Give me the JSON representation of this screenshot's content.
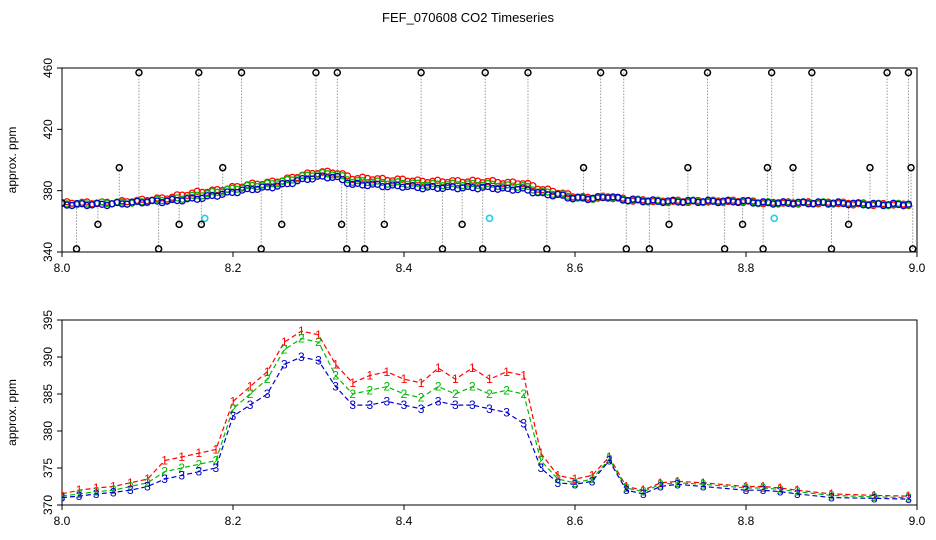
{
  "title": "FEF_070608  CO2 Timeseries",
  "colors": {
    "series1": "#ff0000",
    "series2": "#00bb00",
    "series3": "#0000cc",
    "outlier": "#000000",
    "flagged": "#22ccee",
    "drop": "#999999"
  },
  "chart_data": [
    {
      "type": "scatter",
      "name": "top",
      "ylabel": "approx. ppm",
      "xlim": [
        8.0,
        9.0
      ],
      "ylim": [
        340,
        460
      ],
      "xticks": [
        "8.0",
        "8.2",
        "8.4",
        "8.6",
        "8.8",
        "9.0"
      ],
      "yticks": [
        "340",
        "380",
        "420",
        "460"
      ],
      "outlier_x": [
        8.0,
        8.017,
        8.042,
        8.067,
        8.09,
        8.113,
        8.137,
        8.16,
        8.163,
        8.188,
        8.21,
        8.233,
        8.257,
        8.297,
        8.322,
        8.327,
        8.333,
        8.354,
        8.377,
        8.42,
        8.445,
        8.468,
        8.492,
        8.495,
        8.545,
        8.567,
        8.61,
        8.63,
        8.657,
        8.66,
        8.687,
        8.71,
        8.732,
        8.755,
        8.775,
        8.796,
        8.82,
        8.825,
        8.83,
        8.855,
        8.877,
        8.9,
        8.92,
        8.945,
        8.965,
        8.99,
        8.993,
        8.995
      ],
      "outlier_y": [
        372,
        342,
        358,
        395,
        457,
        342,
        358,
        457,
        358,
        395,
        457,
        342,
        358,
        457,
        457,
        358,
        342,
        342,
        358,
        457,
        342,
        358,
        342,
        457,
        457,
        342,
        395,
        457,
        457,
        342,
        342,
        358,
        395,
        457,
        342,
        358,
        342,
        395,
        457,
        395,
        457,
        342,
        358,
        395,
        457,
        457,
        395,
        342
      ],
      "flagged_x": [
        8.167,
        8.5,
        8.833
      ],
      "flagged_y": [
        362,
        362,
        362
      ],
      "series_x": [
        8.0,
        8.02,
        8.05,
        8.08,
        8.1,
        8.12,
        8.14,
        8.16,
        8.18,
        8.2,
        8.22,
        8.24,
        8.26,
        8.28,
        8.3,
        8.32,
        8.34,
        8.36,
        8.38,
        8.4,
        8.42,
        8.44,
        8.46,
        8.48,
        8.5,
        8.52,
        8.54,
        8.56,
        8.58,
        8.6,
        8.62,
        8.64,
        8.66,
        8.7,
        8.75,
        8.8,
        8.82,
        8.84,
        8.9,
        8.95,
        8.99
      ],
      "series": [
        {
          "name": "1",
          "values": [
            372,
            372,
            372,
            373,
            374,
            375,
            377,
            379,
            380,
            382,
            384,
            385,
            387,
            390,
            392,
            392,
            388,
            388,
            387,
            387,
            386,
            386,
            386,
            386,
            386,
            385,
            385,
            381,
            379,
            376,
            375,
            376,
            374,
            373,
            373,
            373,
            372,
            372,
            372,
            371,
            371
          ]
        },
        {
          "name": "2",
          "values": [
            371,
            371,
            372,
            372,
            373,
            374,
            375,
            377,
            379,
            381,
            383,
            384,
            386,
            389,
            391,
            391,
            386,
            386,
            385,
            385,
            384,
            384,
            384,
            384,
            384,
            383,
            383,
            379,
            378,
            375,
            375,
            376,
            374,
            373,
            373,
            373,
            372,
            372,
            372,
            371,
            371
          ]
        },
        {
          "name": "3",
          "values": [
            371,
            371,
            371,
            372,
            373,
            373,
            374,
            375,
            377,
            379,
            381,
            382,
            384,
            387,
            389,
            389,
            384,
            384,
            383,
            383,
            382,
            382,
            382,
            382,
            382,
            381,
            381,
            378,
            377,
            375,
            375,
            376,
            374,
            373,
            373,
            373,
            372,
            372,
            372,
            371,
            371
          ]
        }
      ]
    },
    {
      "type": "line",
      "name": "bottom",
      "ylabel": "approx. ppm",
      "xlim": [
        8.0,
        9.0
      ],
      "ylim": [
        370,
        395
      ],
      "xticks": [
        "8.0",
        "8.2",
        "8.4",
        "8.6",
        "8.8",
        "9.0"
      ],
      "yticks": [
        "370",
        "375",
        "380",
        "385",
        "390",
        "395"
      ],
      "x": [
        8.0,
        8.02,
        8.04,
        8.06,
        8.08,
        8.1,
        8.12,
        8.14,
        8.16,
        8.18,
        8.2,
        8.22,
        8.24,
        8.26,
        8.28,
        8.3,
        8.32,
        8.34,
        8.36,
        8.38,
        8.4,
        8.42,
        8.44,
        8.46,
        8.48,
        8.5,
        8.52,
        8.54,
        8.56,
        8.58,
        8.6,
        8.62,
        8.64,
        8.66,
        8.68,
        8.7,
        8.72,
        8.75,
        8.8,
        8.82,
        8.84,
        8.86,
        8.9,
        8.95,
        8.99
      ],
      "series": [
        {
          "name": "1",
          "values": [
            371.5,
            372.0,
            372.3,
            372.5,
            373.0,
            373.5,
            376.0,
            376.5,
            377.0,
            377.5,
            384.0,
            386.0,
            388.0,
            392.0,
            393.5,
            393.0,
            389.0,
            386.5,
            387.5,
            388.0,
            387.0,
            386.5,
            388.5,
            387.0,
            388.5,
            387.0,
            388.0,
            387.5,
            377.0,
            374.0,
            373.5,
            374.0,
            376.5,
            372.5,
            372.0,
            373.0,
            373.2,
            373.0,
            372.5,
            372.5,
            372.3,
            372.0,
            371.5,
            371.3,
            371.2
          ]
        },
        {
          "name": "2",
          "values": [
            371.2,
            371.5,
            371.8,
            372.0,
            372.5,
            373.0,
            374.5,
            375.0,
            375.5,
            376.0,
            383.0,
            385.0,
            387.0,
            391.0,
            392.5,
            392.0,
            387.5,
            385.0,
            385.5,
            386.0,
            385.0,
            384.5,
            386.0,
            385.0,
            386.0,
            385.0,
            385.5,
            385.0,
            376.0,
            373.5,
            373.0,
            373.5,
            376.2,
            372.3,
            371.8,
            372.8,
            373.0,
            372.8,
            372.3,
            372.3,
            372.1,
            371.8,
            371.3,
            371.1,
            371.0
          ]
        },
        {
          "name": "3",
          "values": [
            371.0,
            371.2,
            371.5,
            371.7,
            372.0,
            372.5,
            373.5,
            374.0,
            374.5,
            375.0,
            382.0,
            383.5,
            385.0,
            389.0,
            390.0,
            389.5,
            386.0,
            383.5,
            383.5,
            384.0,
            383.5,
            383.0,
            384.0,
            383.5,
            383.5,
            383.0,
            382.5,
            381.0,
            375.0,
            373.0,
            372.8,
            373.2,
            376.0,
            372.0,
            371.5,
            372.5,
            372.8,
            372.5,
            372.0,
            372.0,
            371.8,
            371.5,
            371.0,
            370.9,
            370.8
          ]
        }
      ]
    }
  ]
}
